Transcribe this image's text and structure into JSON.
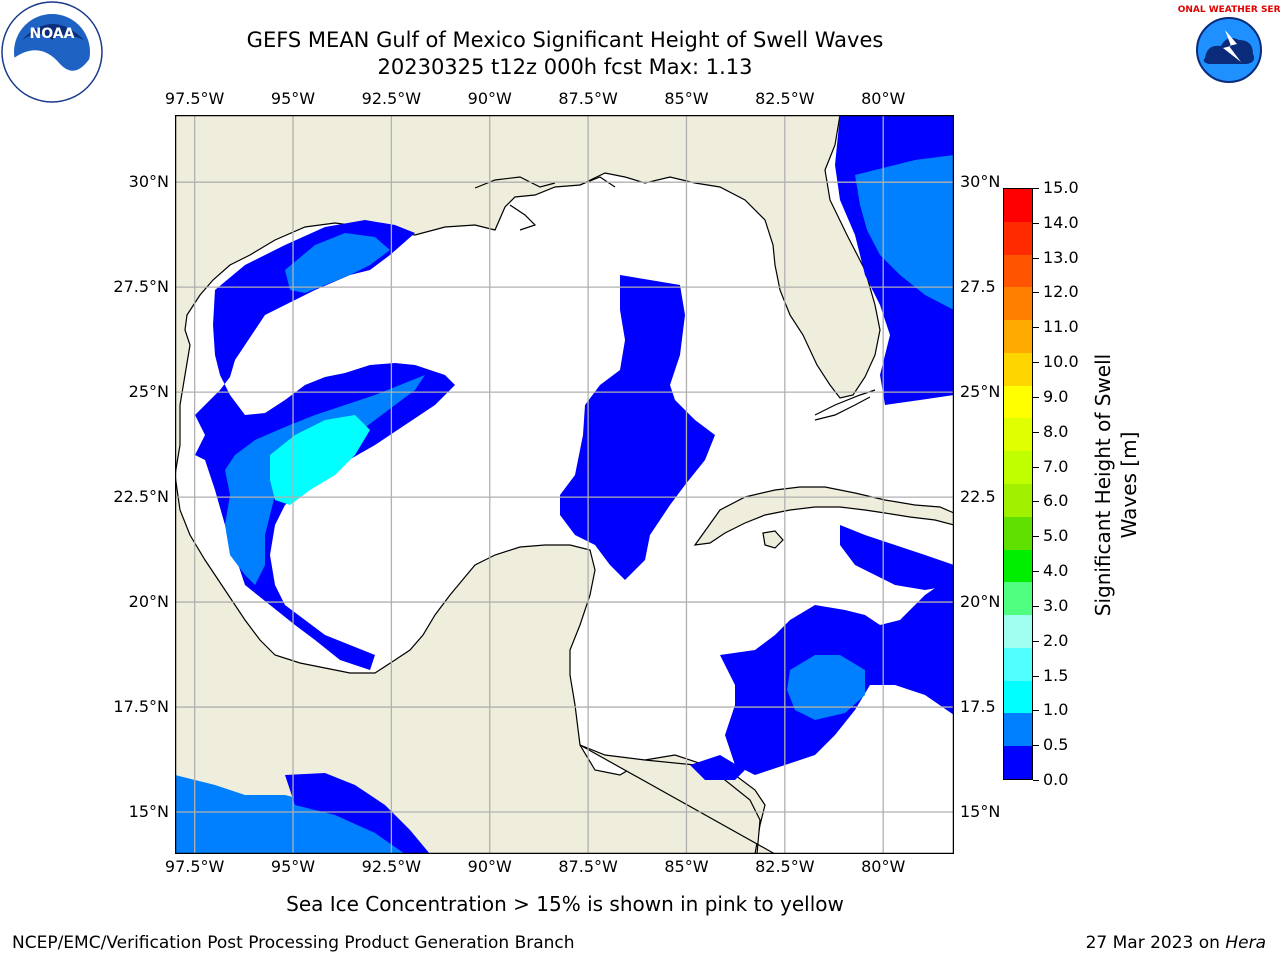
{
  "title_line1": "GEFS MEAN Gulf of Mexico Significant Height of Swell Waves",
  "title_line2": "20230325 t12z 000h fcst   Max: 1.13",
  "subtitle": "Sea Ice Concentration > 15% is shown in pink to yellow",
  "footer_left": "NCEP/EMC/Verification Post Processing Product Generation Branch",
  "footer_date": "27 Mar 2023 on ",
  "footer_host": "Hera",
  "map": {
    "lon_labels": [
      "97.5°W",
      "95°W",
      "92.5°W",
      "90°W",
      "87.5°W",
      "85°W",
      "82.5°W",
      "80°W"
    ],
    "lon_values": [
      -97.5,
      -95,
      -92.5,
      -90,
      -87.5,
      -85,
      -82.5,
      -80
    ],
    "lat_labels_left": [
      "30°N",
      "27.5°N",
      "25°N",
      "22.5°N",
      "20°N",
      "17.5°N",
      "15°N"
    ],
    "lat_labels_right": [
      "30°N",
      "27.5",
      "25°N",
      "22.5",
      "20°N",
      "17.5",
      "15°N"
    ],
    "lat_values": [
      30,
      27.5,
      25,
      22.5,
      20,
      17.5,
      15
    ],
    "lon_range": [
      -98,
      -78.2
    ],
    "lat_range": [
      14,
      31.6
    ],
    "land_color": "#efeedd",
    "water_color": "#ffffff",
    "grid_color": "#b0b0b0"
  },
  "colorbar": {
    "label": "Significant Height of Swell Waves [m]",
    "ticks": [
      "15.0",
      "14.0",
      "13.0",
      "12.0",
      "11.0",
      "10.0",
      "9.0",
      "8.0",
      "7.0",
      "6.0",
      "5.0",
      "4.0",
      "3.0",
      "2.0",
      "1.5",
      "1.0",
      "0.5",
      "0.0"
    ],
    "colors_top_to_bottom": [
      "#ff0000",
      "#ff2a00",
      "#ff5500",
      "#ff8000",
      "#ffaa00",
      "#ffd500",
      "#ffff00",
      "#e0ff00",
      "#c0ff00",
      "#a0f000",
      "#60e000",
      "#00ee00",
      "#50ff80",
      "#a0fff0",
      "#50ffff",
      "#00ffff",
      "#0080ff",
      "#0000ff"
    ]
  },
  "logos": {
    "left": "NOAA",
    "right": "NATIONAL WEATHER SERVICE"
  }
}
